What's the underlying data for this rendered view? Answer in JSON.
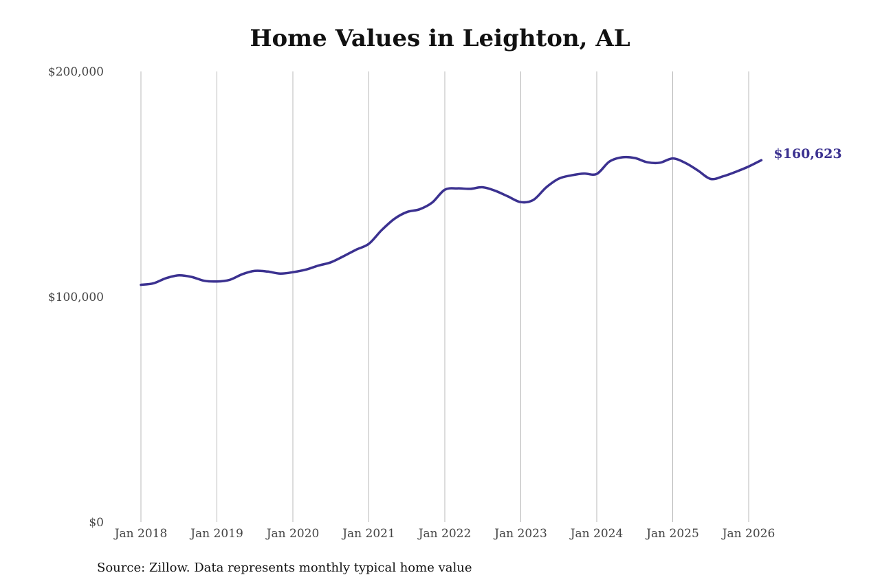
{
  "chart_data": {
    "type": "line",
    "title": "Home Values in Leighton, AL",
    "xlabel": "",
    "ylabel": "",
    "ylim": [
      0,
      200000
    ],
    "ytick_labels": [
      "$0",
      "$100,000",
      "$200,000"
    ],
    "ytick_values": [
      0,
      100000,
      200000
    ],
    "xtick_labels": [
      "Jan 2018",
      "Jan 2019",
      "Jan 2020",
      "Jan 2021",
      "Jan 2022",
      "Jan 2023",
      "Jan 2024",
      "Jan 2025",
      "Jan 2026"
    ],
    "xtick_values": [
      "2018-01",
      "2019-01",
      "2020-01",
      "2021-01",
      "2022-01",
      "2023-01",
      "2024-01",
      "2025-01",
      "2026-01"
    ],
    "xlim": [
      "2018-01",
      "2026-03"
    ],
    "grid": "vertical",
    "line_color": "#3b3190",
    "series": [
      {
        "x": [
          "2018-01",
          "2018-03",
          "2018-05",
          "2018-07",
          "2018-09",
          "2018-11",
          "2019-01",
          "2019-03",
          "2019-05",
          "2019-07",
          "2019-09",
          "2019-11",
          "2020-01",
          "2020-03",
          "2020-05",
          "2020-07",
          "2020-09",
          "2020-11",
          "2021-01",
          "2021-03",
          "2021-05",
          "2021-07",
          "2021-09",
          "2021-11",
          "2022-01",
          "2022-03",
          "2022-05",
          "2022-07",
          "2022-09",
          "2022-11",
          "2023-01",
          "2023-03",
          "2023-05",
          "2023-07",
          "2023-09",
          "2023-11",
          "2024-01",
          "2024-03",
          "2024-05",
          "2024-07",
          "2024-09",
          "2024-11",
          "2025-01",
          "2025-03",
          "2025-05",
          "2025-07",
          "2025-09",
          "2025-11",
          "2026-01",
          "2026-03"
        ],
        "values": [
          105300,
          106000,
          108300,
          109500,
          108800,
          107100,
          106800,
          107500,
          110000,
          111500,
          111200,
          110300,
          110900,
          112000,
          113800,
          115300,
          118000,
          120900,
          123500,
          129500,
          134500,
          137600,
          138800,
          141800,
          147500,
          148100,
          147900,
          148600,
          147000,
          144500,
          142000,
          143000,
          148500,
          152400,
          153900,
          154700,
          154500,
          160000,
          161900,
          161600,
          159700,
          159500,
          161400,
          159400,
          156000,
          152300,
          153500,
          155500,
          157800,
          160623
        ]
      }
    ],
    "end_label": "$160,623",
    "source_note": "Source: Zillow. Data represents monthly typical home value"
  }
}
